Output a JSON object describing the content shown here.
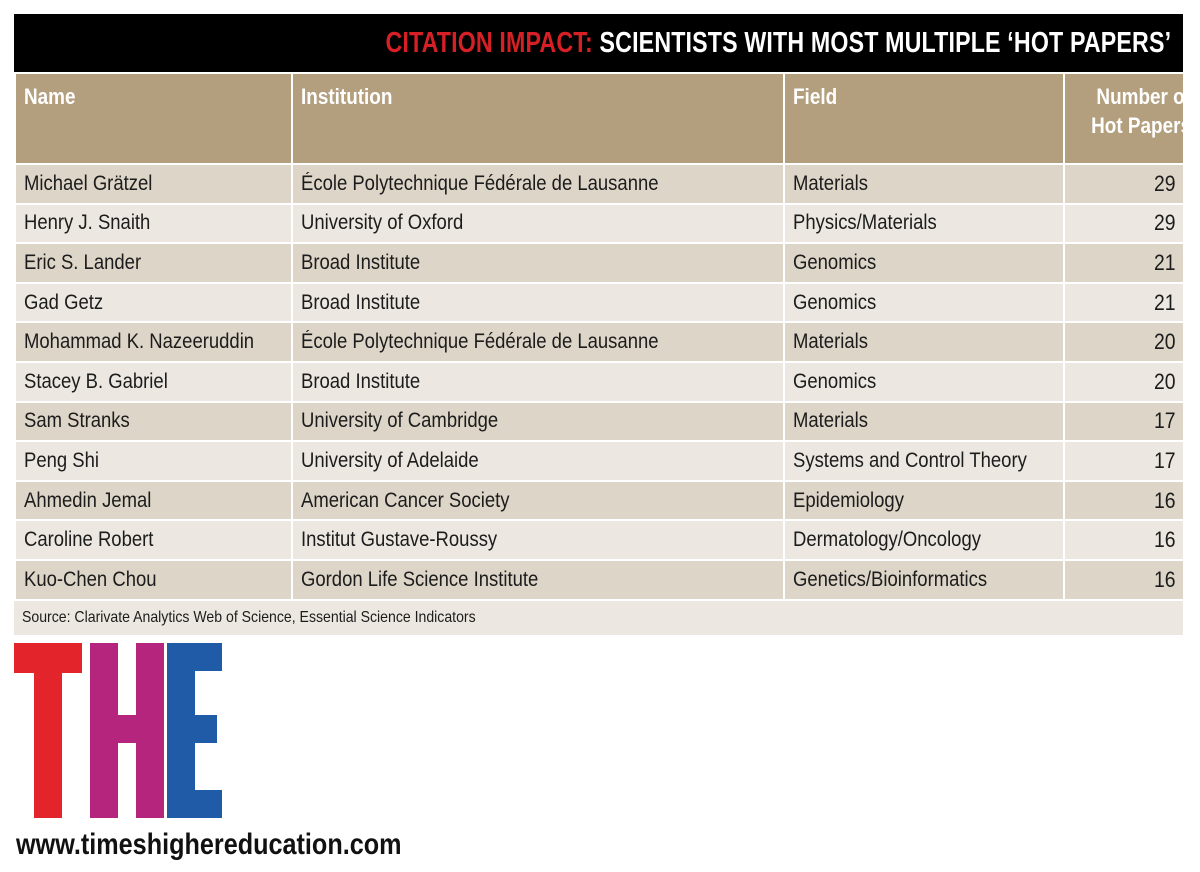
{
  "title": {
    "accent": "CITATION IMPACT:",
    "rest": " SCIENTISTS WITH MOST MULTIPLE ‘HOT PAPERS’"
  },
  "colors": {
    "title_bg": "#000000",
    "accent": "#d71f26",
    "header_bg": "#b39f7d",
    "row_dark": "#ddd5c8",
    "row_light": "#ece8e1",
    "logo_t": "#e3242b",
    "logo_h": "#b5257e",
    "logo_e": "#1f5ba6"
  },
  "chart_data": {
    "type": "table",
    "title": "CITATION IMPACT: SCIENTISTS WITH MOST MULTIPLE ‘HOT PAPERS’",
    "columns": [
      "Name",
      "Institution",
      "Field",
      "Number of Hot Papers"
    ],
    "rows": [
      [
        "Michael Grätzel",
        "École Polytechnique Fédérale de Lausanne",
        "Materials",
        29
      ],
      [
        "Henry J. Snaith",
        "University of Oxford",
        "Physics/Materials",
        29
      ],
      [
        "Eric S. Lander",
        "Broad Institute",
        "Genomics",
        21
      ],
      [
        "Gad Getz",
        "Broad Institute",
        "Genomics",
        21
      ],
      [
        "Mohammad K. Nazeeruddin",
        "École Polytechnique Fédérale de Lausanne",
        "Materials",
        20
      ],
      [
        "Stacey B. Gabriel",
        "Broad Institute",
        "Genomics",
        20
      ],
      [
        "Sam Stranks",
        "University of Cambridge",
        "Materials",
        17
      ],
      [
        "Peng Shi",
        "University of Adelaide",
        "Systems and Control Theory",
        17
      ],
      [
        "Ahmedin Jemal",
        "American Cancer Society",
        "Epidemiology",
        16
      ],
      [
        "Caroline Robert",
        "Institut Gustave-Roussy",
        "Dermatology/Oncology",
        16
      ],
      [
        "Kuo-Chen Chou",
        "Gordon Life Science Institute",
        "Genetics/Bioinformatics",
        16
      ]
    ],
    "source": "Source: Clarivate Analytics Web of Science, Essential Science Indicators"
  },
  "logo": {
    "t": "T",
    "h": "H",
    "e": "E"
  },
  "url": "www.timeshighereducation.com"
}
